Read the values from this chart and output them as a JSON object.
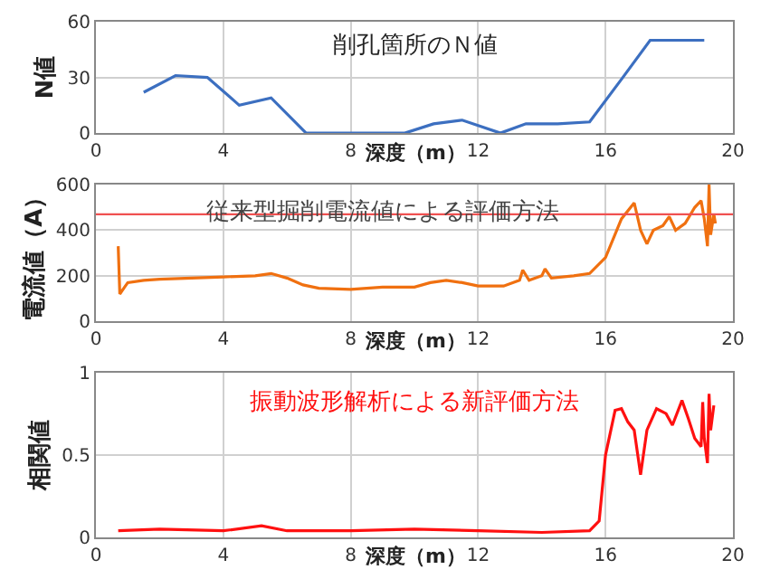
{
  "chart_data": [
    {
      "type": "line",
      "title": "削孔箇所のＮ値",
      "xlabel": "深度（m）",
      "ylabel": "N値",
      "xlim": [
        0,
        20
      ],
      "xticks": [
        0,
        4,
        8,
        12,
        16,
        20
      ],
      "ylim": [
        0,
        60
      ],
      "yticks": [
        0,
        30,
        60
      ],
      "grid": true,
      "marker": "none",
      "line_style": "solid",
      "series": [
        {
          "color": "#3c6fc0",
          "x": [
            1.5,
            2.5,
            3.5,
            4.5,
            5.5,
            6.6,
            7.5,
            8.5,
            9.7,
            10.6,
            11.5,
            12.7,
            13.5,
            14.5,
            15.5,
            16.5,
            17.4,
            18.5,
            19.1
          ],
          "values": [
            22,
            31,
            30,
            15,
            19,
            0,
            0,
            0,
            0,
            5,
            7,
            0,
            5,
            5,
            6,
            29,
            50,
            50,
            50
          ]
        }
      ]
    },
    {
      "type": "line",
      "title": "従来型掘削電流値による評価方法",
      "xlabel": "深度（m）",
      "ylabel": "電流値（A）",
      "xlim": [
        0,
        20
      ],
      "xticks": [
        0,
        4,
        8,
        12,
        16,
        20
      ],
      "ylim": [
        0,
        600
      ],
      "yticks": [
        0,
        200,
        400,
        600
      ],
      "grid": true,
      "marker": "none",
      "line_style": "solid",
      "ref_lines": [
        {
          "axis": "y",
          "value": 470,
          "color": "#f05050"
        }
      ],
      "series": [
        {
          "color": "#f07010",
          "x": [
            0.7,
            0.75,
            0.9,
            1.0,
            1.5,
            2.0,
            3.0,
            4.0,
            5.0,
            5.5,
            6.0,
            6.5,
            7.0,
            8.0,
            9.0,
            10.0,
            10.5,
            11.0,
            11.5,
            12.0,
            12.8,
            13.3,
            13.4,
            13.6,
            14.0,
            14.1,
            14.3,
            15.0,
            15.5,
            16.0,
            16.5,
            16.9,
            17.1,
            17.3,
            17.5,
            17.8,
            18.0,
            18.2,
            18.5,
            18.8,
            19.0,
            19.1,
            19.2,
            19.25,
            19.3,
            19.4,
            19.45
          ],
          "values": [
            330,
            120,
            150,
            170,
            180,
            185,
            190,
            195,
            200,
            210,
            190,
            160,
            145,
            140,
            150,
            150,
            170,
            180,
            170,
            155,
            155,
            180,
            225,
            180,
            200,
            230,
            190,
            200,
            210,
            280,
            450,
            520,
            400,
            340,
            400,
            420,
            460,
            400,
            430,
            500,
            530,
            450,
            330,
            600,
            380,
            470,
            430
          ]
        }
      ]
    },
    {
      "type": "line",
      "title": "振動波形解析による新評価方法",
      "xlabel": "深度（m）",
      "ylabel": "相関値",
      "xlim": [
        0,
        20
      ],
      "xticks": [
        0,
        4,
        8,
        12,
        16,
        20
      ],
      "ylim": [
        0,
        1
      ],
      "yticks": [
        0,
        0.5,
        1
      ],
      "grid": true,
      "marker": "none",
      "line_style": "solid",
      "series": [
        {
          "color": "#ff1010",
          "x": [
            0.7,
            2.0,
            4.0,
            5.2,
            6.0,
            8.0,
            10.0,
            12.0,
            14.0,
            15.5,
            15.8,
            16.0,
            16.3,
            16.5,
            16.7,
            16.9,
            17.1,
            17.3,
            17.6,
            17.9,
            18.1,
            18.4,
            18.6,
            18.8,
            19.0,
            19.05,
            19.1,
            19.2,
            19.25,
            19.3,
            19.4
          ],
          "values": [
            0.04,
            0.05,
            0.04,
            0.07,
            0.04,
            0.04,
            0.05,
            0.04,
            0.03,
            0.04,
            0.1,
            0.5,
            0.77,
            0.78,
            0.7,
            0.65,
            0.38,
            0.65,
            0.78,
            0.75,
            0.68,
            0.83,
            0.72,
            0.6,
            0.55,
            0.82,
            0.6,
            0.45,
            0.87,
            0.65,
            0.8
          ]
        }
      ]
    }
  ]
}
